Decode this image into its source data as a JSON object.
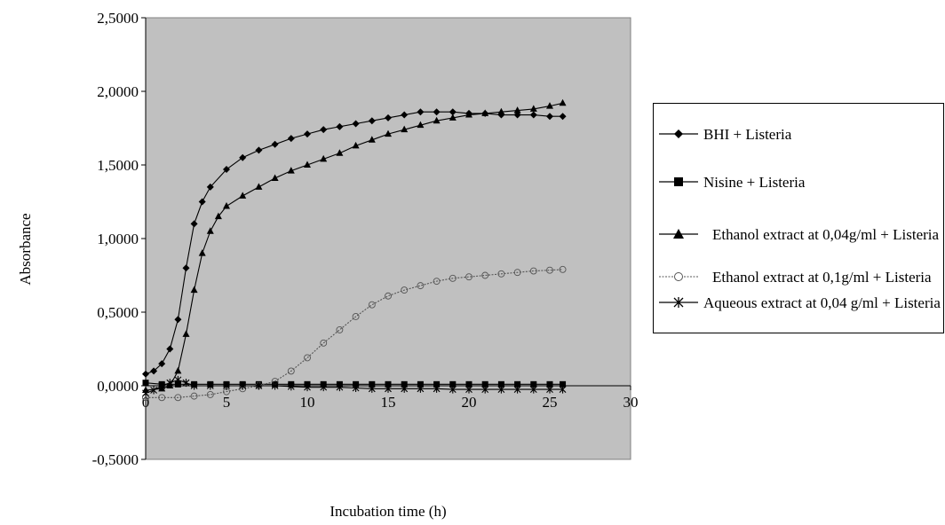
{
  "chart_data": {
    "type": "line",
    "xlabel": "Incubation time (h)",
    "ylabel": "Absorbance",
    "xlim": [
      0,
      30
    ],
    "ylim": [
      -0.5,
      2.5
    ],
    "xticks": [
      "0",
      "5",
      "10",
      "15",
      "20",
      "25",
      "30"
    ],
    "yticks": [
      "-0,5000",
      "0,0000",
      "0,5000",
      "1,0000",
      "1,5000",
      "2,0000",
      "2,5000"
    ],
    "plot_background": "#c0c0c0",
    "grid": false,
    "legend_position": "right",
    "series": [
      {
        "name": "BHI + Listeria",
        "marker": "diamond",
        "color": "#000000",
        "x": [
          0,
          0.5,
          1,
          1.5,
          2,
          2.5,
          3,
          3.5,
          4,
          5,
          6,
          7,
          8,
          9,
          10,
          11,
          12,
          13,
          14,
          15,
          16,
          17,
          18,
          19,
          20,
          21,
          22,
          23,
          24,
          25,
          25.8
        ],
        "y": [
          0.08,
          0.1,
          0.15,
          0.25,
          0.45,
          0.8,
          1.1,
          1.25,
          1.35,
          1.47,
          1.55,
          1.6,
          1.64,
          1.68,
          1.71,
          1.74,
          1.76,
          1.78,
          1.8,
          1.82,
          1.84,
          1.86,
          1.86,
          1.86,
          1.85,
          1.85,
          1.84,
          1.84,
          1.84,
          1.83,
          1.83
        ]
      },
      {
        "name": "Nisine + Listeria",
        "marker": "square",
        "color": "#000000",
        "x": [
          0,
          1,
          2,
          3,
          4,
          5,
          6,
          7,
          8,
          9,
          10,
          11,
          12,
          13,
          14,
          15,
          16,
          17,
          18,
          19,
          20,
          21,
          22,
          23,
          24,
          25,
          25.8
        ],
        "y": [
          0.02,
          0.01,
          0.01,
          0.01,
          0.01,
          0.01,
          0.01,
          0.01,
          0.01,
          0.01,
          0.01,
          0.01,
          0.01,
          0.01,
          0.01,
          0.01,
          0.01,
          0.01,
          0.01,
          0.01,
          0.01,
          0.01,
          0.01,
          0.01,
          0.01,
          0.01,
          0.01
        ]
      },
      {
        "name": "Ethanol extract at 0,04g/ml + Listeria",
        "marker": "triangle",
        "color": "#000000",
        "x": [
          0,
          1,
          1.5,
          2,
          2.5,
          3,
          3.5,
          4,
          4.5,
          5,
          6,
          7,
          8,
          9,
          10,
          11,
          12,
          13,
          14,
          15,
          16,
          17,
          18,
          19,
          20,
          21,
          22,
          23,
          24,
          25,
          25.8
        ],
        "y": [
          -0.03,
          -0.02,
          0.0,
          0.1,
          0.35,
          0.65,
          0.9,
          1.05,
          1.15,
          1.22,
          1.29,
          1.35,
          1.41,
          1.46,
          1.5,
          1.54,
          1.58,
          1.63,
          1.67,
          1.71,
          1.74,
          1.77,
          1.8,
          1.82,
          1.84,
          1.85,
          1.86,
          1.87,
          1.88,
          1.9,
          1.92
        ]
      },
      {
        "name": "Ethanol extract at 0,1g/ml + Listeria",
        "marker": "open-circle",
        "color": "#555555",
        "x": [
          0,
          1,
          2,
          3,
          4,
          5,
          6,
          7,
          8,
          9,
          10,
          11,
          12,
          13,
          14,
          15,
          16,
          17,
          18,
          19,
          20,
          21,
          22,
          23,
          24,
          25,
          25.8
        ],
        "y": [
          -0.08,
          -0.08,
          -0.08,
          -0.07,
          -0.06,
          -0.04,
          -0.02,
          0.0,
          0.03,
          0.1,
          0.19,
          0.29,
          0.38,
          0.47,
          0.55,
          0.61,
          0.65,
          0.68,
          0.71,
          0.73,
          0.74,
          0.75,
          0.76,
          0.77,
          0.78,
          0.785,
          0.79
        ]
      },
      {
        "name": "Aqueous extract at 0,04 g/ml + Listeria",
        "marker": "star",
        "color": "#000000",
        "x": [
          0,
          0.5,
          1,
          1.5,
          2,
          2.5,
          3,
          4,
          5,
          6,
          7,
          8,
          9,
          10,
          11,
          12,
          13,
          14,
          15,
          16,
          17,
          18,
          19,
          20,
          21,
          22,
          23,
          24,
          25,
          25.8
        ],
        "y": [
          -0.05,
          -0.03,
          0.0,
          0.02,
          0.04,
          0.02,
          0.0,
          0.0,
          0.0,
          0.0,
          0.0,
          0.0,
          -0.005,
          -0.01,
          -0.01,
          -0.01,
          -0.015,
          -0.02,
          -0.02,
          -0.02,
          -0.02,
          -0.02,
          -0.025,
          -0.025,
          -0.025,
          -0.025,
          -0.025,
          -0.025,
          -0.025,
          -0.025
        ]
      }
    ]
  },
  "legend": {
    "items": [
      {
        "label": "BHI + Listeria"
      },
      {
        "label": "Nisine + Listeria"
      },
      {
        "label": "Ethanol extract at 0,04g/ml + Listeria"
      },
      {
        "label": "Ethanol extract at 0,1g/ml + Listeria"
      },
      {
        "label": "Aqueous extract at 0,04 g/ml + Listeria"
      }
    ]
  }
}
